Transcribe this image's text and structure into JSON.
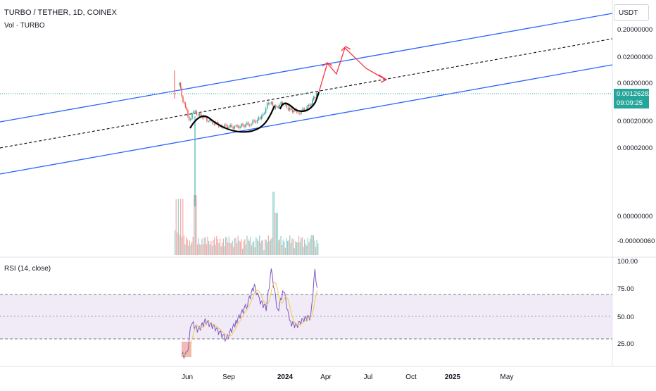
{
  "header": {
    "symbol_title": "TURBO / TETHER, 1D, COINEX",
    "volume_indicator": "Vol · TURBO",
    "currency": "USDT"
  },
  "price_tag": {
    "value": "0.00126282",
    "countdown": "09:09:25"
  },
  "colors": {
    "channel_line": "#2962ff",
    "mid_line": "#131722",
    "projection": "#f23645",
    "cup_curve": "#000000",
    "up_candle": "#26a69a",
    "down_candle": "#ef5350",
    "rsi_line": "#7e57c2",
    "rsi_band": "#ede7f6",
    "current_price": "#26a69a"
  },
  "chart_data": [
    {
      "type": "line",
      "title": "TURBO / TETHER, 1D, COINEX",
      "y_scale": "log",
      "price_axis_ticks": [
        "0.20000000",
        "0.02000000",
        "0.00200000",
        "0.00020000",
        "0.00002000"
      ],
      "volume_axis_ticks": [
        "0.00000000",
        "-0.00000060"
      ],
      "time_axis_ticks": [
        "Jun",
        "Sep",
        "2024",
        "Apr",
        "Jul",
        "Oct",
        "2025",
        "May"
      ],
      "current_price": 0.00126282,
      "price_series": [
        {
          "x": "2023-05-15",
          "y": 0.002
        },
        {
          "x": "2023-05-20",
          "y": 0.0009
        },
        {
          "x": "2023-05-28",
          "y": 0.00045
        },
        {
          "x": "2023-06-05",
          "y": 0.00022
        },
        {
          "x": "2023-06-15",
          "y": 0.00035
        },
        {
          "x": "2023-07-01",
          "y": 0.00028
        },
        {
          "x": "2023-07-20",
          "y": 0.0002
        },
        {
          "x": "2023-08-15",
          "y": 0.00015
        },
        {
          "x": "2023-09-15",
          "y": 0.00014
        },
        {
          "x": "2023-10-15",
          "y": 0.00017
        },
        {
          "x": "2023-11-10",
          "y": 0.00025
        },
        {
          "x": "2023-11-25",
          "y": 0.00065
        },
        {
          "x": "2023-12-10",
          "y": 0.00045
        },
        {
          "x": "2023-12-25",
          "y": 0.0006
        },
        {
          "x": "2024-01-10",
          "y": 0.0004
        },
        {
          "x": "2024-02-01",
          "y": 0.00035
        },
        {
          "x": "2024-02-20",
          "y": 0.00048
        },
        {
          "x": "2024-03-05",
          "y": 0.0009
        },
        {
          "x": "2024-03-12",
          "y": 0.00126
        }
      ],
      "rsi": {
        "label": "RSI (14, close)",
        "axis_ticks": [
          "100.00",
          "75.00",
          "50.00",
          "25.00"
        ],
        "band": [
          30,
          70
        ],
        "midline": 50,
        "values": [
          {
            "x": "2023-05-20",
            "y": 15
          },
          {
            "x": "2023-06-01",
            "y": 16
          },
          {
            "x": "2023-06-10",
            "y": 45
          },
          {
            "x": "2023-06-25",
            "y": 38
          },
          {
            "x": "2023-07-10",
            "y": 46
          },
          {
            "x": "2023-08-01",
            "y": 40
          },
          {
            "x": "2023-08-25",
            "y": 30
          },
          {
            "x": "2023-09-15",
            "y": 45
          },
          {
            "x": "2023-10-10",
            "y": 62
          },
          {
            "x": "2023-10-25",
            "y": 78
          },
          {
            "x": "2023-11-05",
            "y": 65
          },
          {
            "x": "2023-11-20",
            "y": 58
          },
          {
            "x": "2023-12-01",
            "y": 92
          },
          {
            "x": "2023-12-15",
            "y": 55
          },
          {
            "x": "2023-12-28",
            "y": 75
          },
          {
            "x": "2024-01-10",
            "y": 45
          },
          {
            "x": "2024-01-25",
            "y": 42
          },
          {
            "x": "2024-02-10",
            "y": 48
          },
          {
            "x": "2024-02-25",
            "y": 50
          },
          {
            "x": "2024-03-05",
            "y": 92
          },
          {
            "x": "2024-03-10",
            "y": 76
          }
        ]
      }
    }
  ]
}
